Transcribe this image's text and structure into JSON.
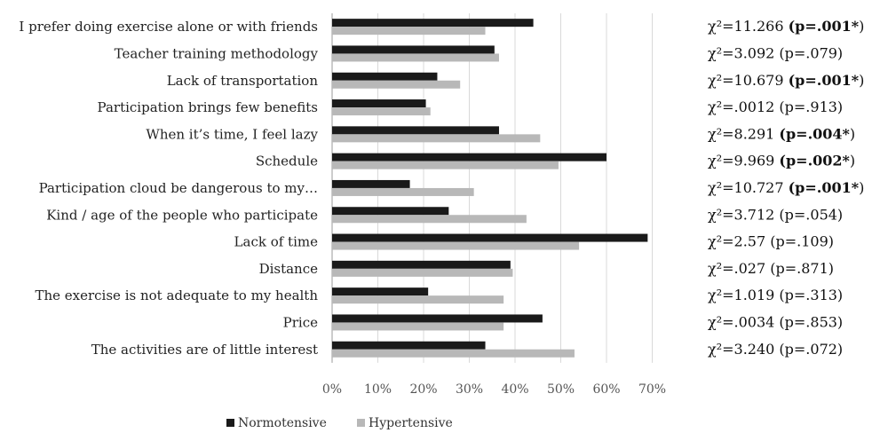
{
  "chart_data": {
    "type": "bar",
    "orientation": "horizontal",
    "categories": [
      "I prefer doing exercise alone or with friends",
      "Teacher training methodology",
      "Lack of transportation",
      "Participation brings few benefits",
      "When it’s time, I feel lazy",
      "Schedule",
      "Participation cloud be dangerous to my…",
      "Kind / age of the people who participate",
      "Lack of time",
      "Distance",
      "The exercise is not adequate to my health",
      "Price",
      "The activities are of little interest"
    ],
    "series": [
      {
        "name": "Normotensive",
        "color": "#1a1a1a",
        "values": [
          44,
          35.5,
          23,
          20.5,
          36.5,
          60,
          17,
          25.5,
          69,
          39,
          21,
          46,
          33.5
        ]
      },
      {
        "name": "Hypertensive",
        "color": "#b8b8b8",
        "values": [
          33.5,
          36.5,
          28,
          21.5,
          45.5,
          49.5,
          31,
          42.5,
          54,
          39.5,
          37.5,
          37.5,
          53
        ]
      }
    ],
    "xlim": [
      0,
      70
    ],
    "xticks": [
      "0%",
      "10%",
      "20%",
      "30%",
      "40%",
      "50%",
      "60%",
      "70%"
    ],
    "grid": true,
    "legend_position": "bottom-left",
    "statistics": [
      {
        "pre": "χ²=11.266 ",
        "open": "(p=",
        "p": ".001*",
        "close": ")",
        "bold": true
      },
      {
        "pre": "χ²=3.092 ",
        "open": "(p=",
        "p": ".079",
        "close": ")",
        "bold": false
      },
      {
        "pre": "χ²=10.679 ",
        "open": "(p=",
        "p": ".001*",
        "close": ")",
        "bold": true
      },
      {
        "pre": "χ²=.0012 ",
        "open": "(p=",
        "p": ".913",
        "close": ")",
        "bold": false
      },
      {
        "pre": "χ²=8.291 ",
        "open": "(p=",
        "p": ".004*",
        "close": ")",
        "bold": true
      },
      {
        "pre": "χ²=9.969 ",
        "open": "(p=",
        "p": ".002*",
        "close": ")",
        "bold": true
      },
      {
        "pre": "χ²=10.727 ",
        "open": "(p=",
        "p": ".001*",
        "close": ")",
        "bold": true
      },
      {
        "pre": "χ²=3.712 ",
        "open": "(p=",
        "p": ".054",
        "close": ")",
        "bold": false
      },
      {
        "pre": "χ²=2.57 ",
        "open": "(p=",
        "p": ".109",
        "close": ")",
        "bold": false
      },
      {
        "pre": "χ²=.027 ",
        "open": "(p=",
        "p": ".871",
        "close": ")",
        "bold": false
      },
      {
        "pre": "χ²=1.019 ",
        "open": "(p=",
        "p": ".313",
        "close": ")",
        "bold": false
      },
      {
        "pre": "χ²=.0034 ",
        "open": "(p=",
        "p": ".853",
        "close": ")",
        "bold": false
      },
      {
        "pre": "χ²=3.240 ",
        "open": "(p=",
        "p": ".072",
        "close": ")",
        "bold": false
      }
    ]
  }
}
